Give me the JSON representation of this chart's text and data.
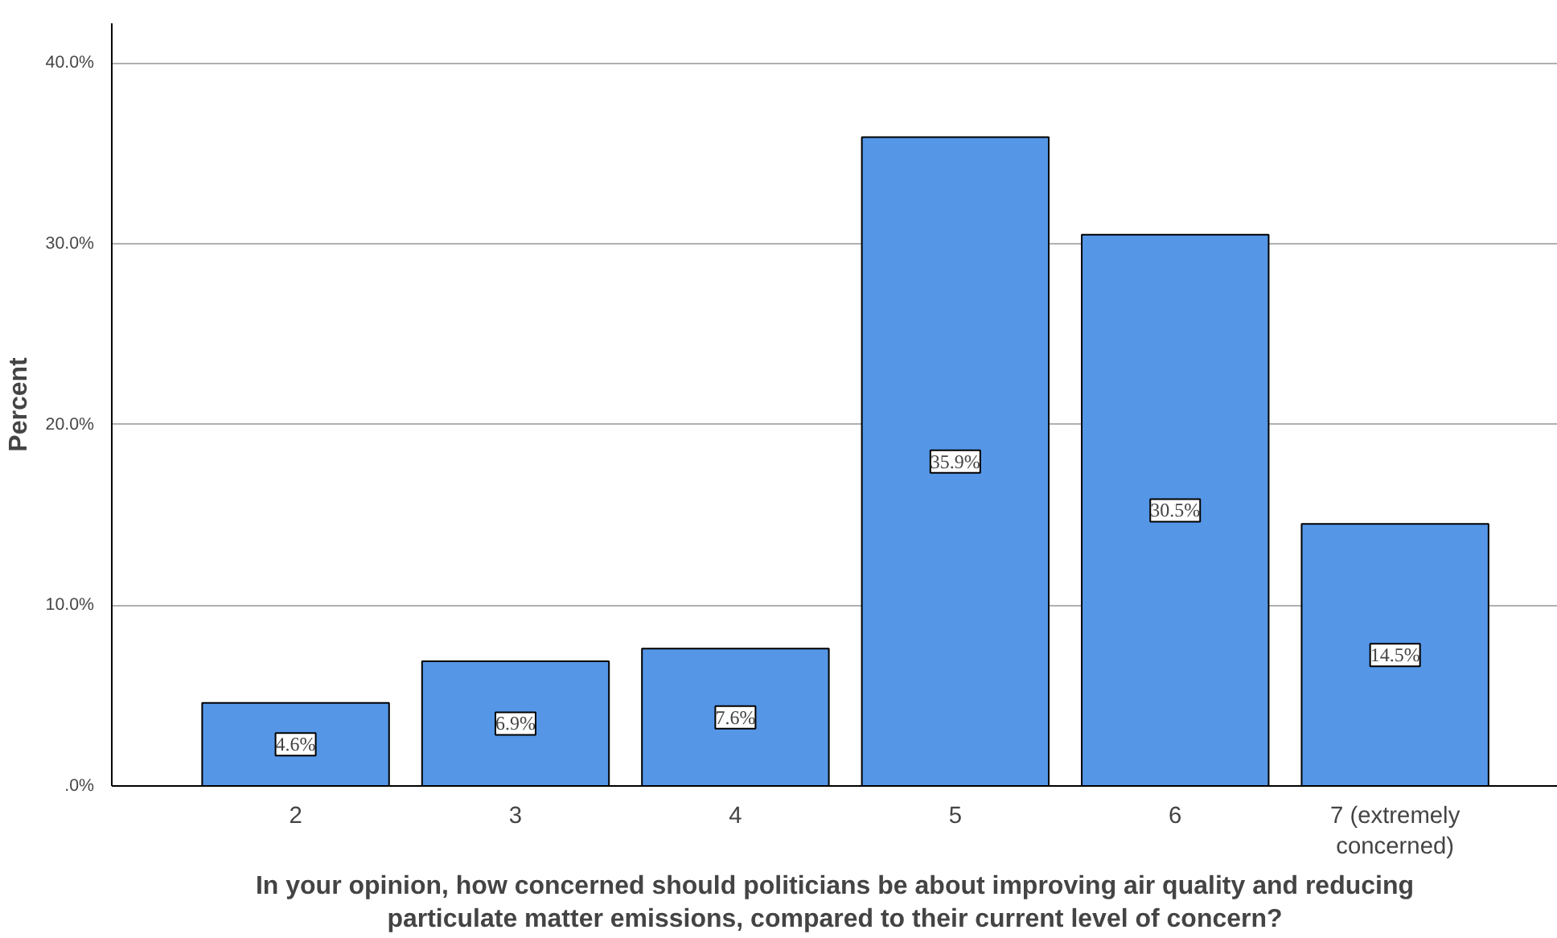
{
  "chart_data": {
    "type": "bar",
    "ylabel": "Percent",
    "xlabel": "In your opinion, how concerned should politicians be about improving air quality and reducing\nparticulate matter emissions, compared to their current level of concern?",
    "categories": [
      "2",
      "3",
      "4",
      "5",
      "6",
      "7 (extremely\nconcerned)"
    ],
    "values": [
      4.6,
      6.9,
      7.6,
      35.9,
      30.5,
      14.5
    ],
    "value_labels": [
      "4.6%",
      "6.9%",
      "7.6%",
      "35.9%",
      "30.5%",
      "14.5%"
    ],
    "color": "#5596e6",
    "ylim": [
      0,
      42.2
    ],
    "yticks": [
      {
        "value": 0,
        "label": ".0%"
      },
      {
        "value": 10,
        "label": "10.0%"
      },
      {
        "value": 20,
        "label": "20.0%"
      },
      {
        "value": 30,
        "label": "30.0%"
      },
      {
        "value": 40,
        "label": "40.0%"
      }
    ],
    "grid": "y"
  }
}
